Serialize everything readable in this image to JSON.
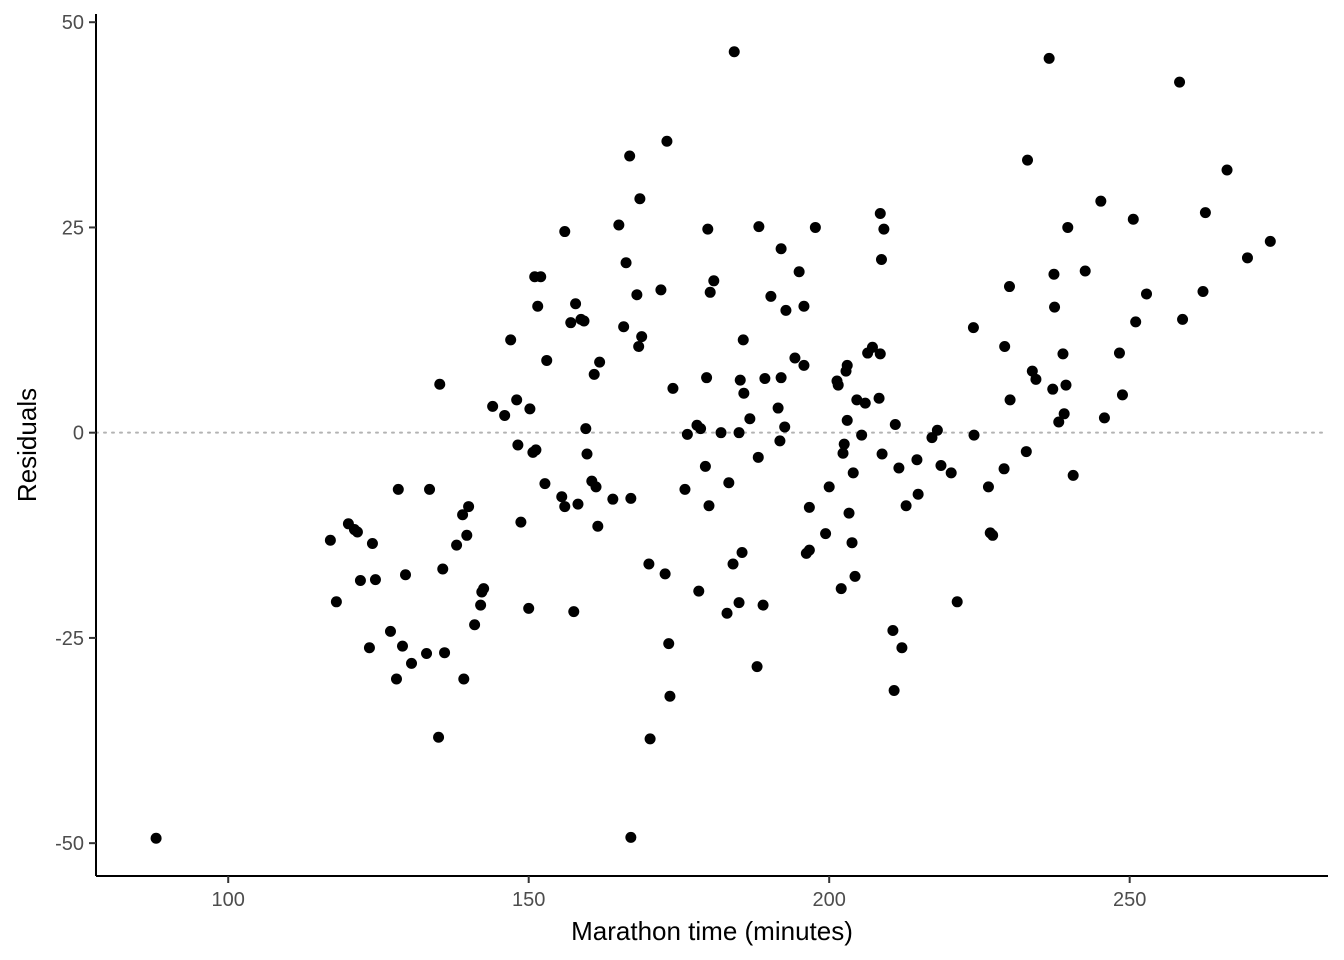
{
  "chart_data": {
    "type": "scatter",
    "xlabel": "Marathon time (minutes)",
    "ylabel": "Residuals",
    "xlim": [
      78,
      283
    ],
    "ylim": [
      -54,
      51
    ],
    "x_ticks": [
      100,
      150,
      200,
      250
    ],
    "x_tick_labels": [
      "100",
      "150",
      "200",
      "250"
    ],
    "y_ticks": [
      -50,
      -25,
      0,
      25,
      50
    ],
    "y_tick_labels": [
      "-50",
      "-25",
      "0",
      "25",
      "50"
    ],
    "reference_line": {
      "y": 0,
      "style": "dotted",
      "color": "#b3b3b3"
    },
    "grid": false,
    "point_color": "#000000",
    "points": [
      [
        88,
        -49.4
      ],
      [
        117,
        -13.1
      ],
      [
        118,
        -20.6
      ],
      [
        120,
        -11.1
      ],
      [
        121,
        -11.8
      ],
      [
        121.5,
        -12.1
      ],
      [
        122,
        -18
      ],
      [
        123.5,
        -26.2
      ],
      [
        124,
        -13.5
      ],
      [
        124.5,
        -17.9
      ],
      [
        127,
        -24.2
      ],
      [
        128,
        -30
      ],
      [
        128.3,
        -6.9
      ],
      [
        129,
        -26
      ],
      [
        129.5,
        -17.3
      ],
      [
        130.5,
        -28.1
      ],
      [
        133,
        -26.9
      ],
      [
        133.5,
        -6.9
      ],
      [
        135,
        -37.1
      ],
      [
        135.2,
        5.9
      ],
      [
        135.7,
        -16.6
      ],
      [
        136,
        -26.8
      ],
      [
        138,
        -13.7
      ],
      [
        139,
        -10
      ],
      [
        139.2,
        -30
      ],
      [
        139.7,
        -12.5
      ],
      [
        140,
        -9
      ],
      [
        141,
        -23.4
      ],
      [
        142,
        -21
      ],
      [
        142.2,
        -19.4
      ],
      [
        142.5,
        -19
      ],
      [
        144,
        3.2
      ],
      [
        146,
        2.1
      ],
      [
        147,
        11.3
      ],
      [
        148,
        4
      ],
      [
        148.2,
        -1.5
      ],
      [
        148.7,
        -10.9
      ],
      [
        150,
        -21.4
      ],
      [
        150.2,
        2.9
      ],
      [
        150.7,
        -2.4
      ],
      [
        151,
        19
      ],
      [
        151.2,
        -2.1
      ],
      [
        151.5,
        15.4
      ],
      [
        152,
        19
      ],
      [
        152.7,
        -6.2
      ],
      [
        153,
        8.8
      ],
      [
        155.5,
        -7.8
      ],
      [
        156,
        24.5
      ],
      [
        156,
        -9
      ],
      [
        157,
        13.4
      ],
      [
        157.5,
        -21.8
      ],
      [
        157.8,
        15.7
      ],
      [
        158.2,
        -8.7
      ],
      [
        158.7,
        13.8
      ],
      [
        159.2,
        13.6
      ],
      [
        159.5,
        0.5
      ],
      [
        159.7,
        -2.6
      ],
      [
        160.5,
        -5.9
      ],
      [
        160.9,
        7.1
      ],
      [
        161.2,
        -6.6
      ],
      [
        161.5,
        -11.4
      ],
      [
        161.8,
        8.6
      ],
      [
        164,
        -8.1
      ],
      [
        165,
        25.3
      ],
      [
        165.8,
        12.9
      ],
      [
        166.2,
        20.7
      ],
      [
        166.8,
        33.7
      ],
      [
        167,
        -8
      ],
      [
        167,
        -49.3
      ],
      [
        168,
        16.8
      ],
      [
        168.3,
        10.5
      ],
      [
        168.5,
        28.5
      ],
      [
        168.8,
        11.7
      ],
      [
        170,
        -16
      ],
      [
        170.2,
        -37.3
      ],
      [
        172,
        17.4
      ],
      [
        172.7,
        -17.2
      ],
      [
        173,
        35.5
      ],
      [
        173.3,
        -25.7
      ],
      [
        173.5,
        -32.1
      ],
      [
        174,
        5.4
      ],
      [
        176,
        -6.9
      ],
      [
        176.4,
        -0.2
      ],
      [
        178,
        0.9
      ],
      [
        178.3,
        -19.3
      ],
      [
        178.6,
        0.5
      ],
      [
        179.4,
        -4.1
      ],
      [
        179.6,
        6.7
      ],
      [
        179.8,
        24.8
      ],
      [
        180,
        -8.9
      ],
      [
        180.2,
        17.1
      ],
      [
        180.8,
        18.5
      ],
      [
        182,
        0
      ],
      [
        183,
        -22
      ],
      [
        183.3,
        -6.1
      ],
      [
        184,
        -16
      ],
      [
        184.2,
        46.4
      ],
      [
        185,
        -20.7
      ],
      [
        185,
        0
      ],
      [
        185.2,
        6.4
      ],
      [
        185.5,
        -14.6
      ],
      [
        185.7,
        11.3
      ],
      [
        185.8,
        4.8
      ],
      [
        186.8,
        1.7
      ],
      [
        188,
        -28.5
      ],
      [
        188.2,
        -3
      ],
      [
        188.3,
        25.1
      ],
      [
        189,
        -21
      ],
      [
        189.3,
        6.6
      ],
      [
        190.3,
        16.6
      ],
      [
        191.5,
        3
      ],
      [
        191.8,
        -1
      ],
      [
        192,
        22.4
      ],
      [
        192,
        6.7
      ],
      [
        192.6,
        0.7
      ],
      [
        192.8,
        14.9
      ],
      [
        194.3,
        9.1
      ],
      [
        195,
        19.6
      ],
      [
        195.8,
        15.4
      ],
      [
        195.8,
        8.2
      ],
      [
        196.2,
        -14.7
      ],
      [
        196.7,
        -9.1
      ],
      [
        196.7,
        -14.3
      ],
      [
        197.7,
        25
      ],
      [
        199.4,
        -12.3
      ],
      [
        200,
        -6.6
      ],
      [
        201.3,
        6.3
      ],
      [
        201.5,
        5.8
      ],
      [
        202,
        -19
      ],
      [
        202.3,
        -2.5
      ],
      [
        202.5,
        -1.4
      ],
      [
        202.8,
        7.5
      ],
      [
        203,
        8.2
      ],
      [
        203,
        1.5
      ],
      [
        203.3,
        -9.8
      ],
      [
        203.8,
        -13.4
      ],
      [
        204,
        -4.9
      ],
      [
        204.3,
        -17.5
      ],
      [
        204.6,
        4
      ],
      [
        205.4,
        -0.3
      ],
      [
        206,
        3.6
      ],
      [
        206.4,
        9.7
      ],
      [
        207.2,
        10.4
      ],
      [
        208.3,
        4.2
      ],
      [
        208.5,
        26.7
      ],
      [
        208.5,
        9.6
      ],
      [
        208.7,
        21.1
      ],
      [
        208.8,
        -2.6
      ],
      [
        209.1,
        24.8
      ],
      [
        210.6,
        -24.1
      ],
      [
        210.8,
        -31.4
      ],
      [
        211,
        1
      ],
      [
        211.6,
        -4.3
      ],
      [
        212.1,
        -26.2
      ],
      [
        212.8,
        -8.9
      ],
      [
        214.6,
        -3.3
      ],
      [
        214.8,
        -7.5
      ],
      [
        217.1,
        -0.6
      ],
      [
        218,
        0.3
      ],
      [
        218.6,
        -4
      ],
      [
        220.3,
        -4.9
      ],
      [
        221.3,
        -20.6
      ],
      [
        224,
        12.8
      ],
      [
        224.1,
        -0.3
      ],
      [
        226.5,
        -6.6
      ],
      [
        226.8,
        -12.2
      ],
      [
        227.2,
        -12.5
      ],
      [
        229.1,
        -4.4
      ],
      [
        229.2,
        10.5
      ],
      [
        230,
        17.8
      ],
      [
        230.1,
        4
      ],
      [
        232.8,
        -2.3
      ],
      [
        233,
        33.2
      ],
      [
        233.8,
        7.5
      ],
      [
        234.4,
        6.5
      ],
      [
        236.6,
        45.6
      ],
      [
        237.2,
        5.3
      ],
      [
        237.4,
        19.3
      ],
      [
        237.5,
        15.3
      ],
      [
        238.2,
        1.3
      ],
      [
        238.9,
        9.6
      ],
      [
        239.1,
        2.3
      ],
      [
        239.4,
        5.8
      ],
      [
        239.7,
        25
      ],
      [
        240.6,
        -5.2
      ],
      [
        242.6,
        19.7
      ],
      [
        245.2,
        28.2
      ],
      [
        245.8,
        1.8
      ],
      [
        248.3,
        9.7
      ],
      [
        248.8,
        4.6
      ],
      [
        250.6,
        26
      ],
      [
        251,
        13.5
      ],
      [
        252.8,
        16.9
      ],
      [
        258.3,
        42.7
      ],
      [
        258.8,
        13.8
      ],
      [
        262.2,
        17.2
      ],
      [
        262.6,
        26.8
      ],
      [
        266.2,
        32
      ],
      [
        269.6,
        21.3
      ],
      [
        273.4,
        23.3
      ]
    ]
  }
}
